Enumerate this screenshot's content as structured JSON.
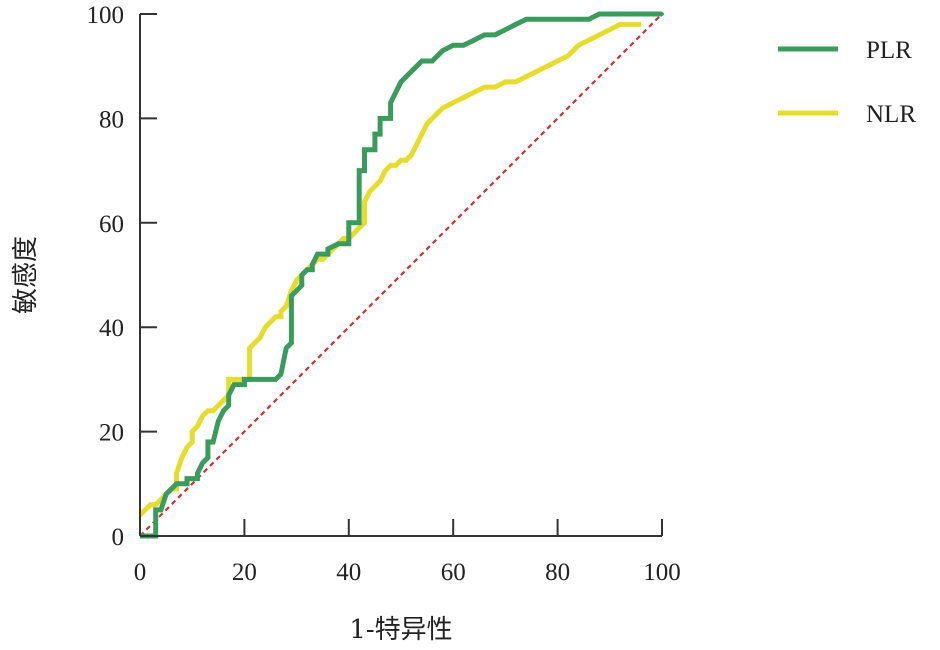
{
  "chart_data": {
    "type": "line",
    "title": "",
    "xlabel": "1-特异性",
    "ylabel": "敏感度",
    "xlim": [
      0,
      100
    ],
    "ylim": [
      0,
      100
    ],
    "xticks": [
      0,
      20,
      40,
      60,
      80,
      100
    ],
    "yticks": [
      0,
      20,
      40,
      60,
      80,
      100
    ],
    "grid": false,
    "legend_position": "top-right",
    "reference_line": {
      "x": [
        0,
        100
      ],
      "y": [
        0,
        100
      ],
      "style": "dashed",
      "color": "#cc3333"
    },
    "series": [
      {
        "name": "PLR",
        "color": "#3a9b5c",
        "x": [
          0,
          3,
          3,
          4,
          5,
          5,
          7,
          7,
          9,
          9,
          11,
          11,
          12,
          13,
          13,
          14,
          15,
          16,
          17,
          17,
          18,
          20,
          20,
          22,
          26,
          27,
          28,
          29,
          29,
          30,
          31,
          31,
          32,
          33,
          33,
          34,
          36,
          36,
          38,
          40,
          40,
          42,
          42,
          43,
          43,
          45,
          45,
          46,
          46,
          48,
          48,
          49,
          50,
          51,
          52,
          53,
          54,
          56,
          57,
          58,
          60,
          62,
          64,
          66,
          68,
          70,
          72,
          74,
          80,
          86,
          88,
          90,
          100
        ],
        "y": [
          0,
          0,
          5,
          5,
          8,
          8,
          10,
          10,
          10,
          11,
          11,
          12,
          14,
          15,
          18,
          18,
          22,
          24,
          25,
          27,
          29,
          29,
          30,
          30,
          30,
          31,
          36,
          37,
          46,
          47,
          48,
          50,
          51,
          51,
          52,
          54,
          54,
          55,
          56,
          56,
          60,
          60,
          70,
          70,
          74,
          74,
          77,
          77,
          80,
          80,
          83,
          85,
          87,
          88,
          89,
          90,
          91,
          91,
          92,
          93,
          94,
          94,
          95,
          96,
          96,
          97,
          98,
          99,
          99,
          99,
          100,
          100,
          100
        ]
      },
      {
        "name": "NLR",
        "color": "#e6dc2e",
        "x": [
          0,
          1,
          2,
          3,
          4,
          5,
          6,
          7,
          7,
          8,
          9,
          10,
          10,
          11,
          12,
          13,
          14,
          15,
          16,
          17,
          17,
          18,
          20,
          21,
          21,
          22,
          23,
          24,
          25,
          26,
          27,
          27,
          28,
          29,
          30,
          31,
          32,
          33,
          34,
          35,
          36,
          37,
          38,
          39,
          40,
          41,
          42,
          43,
          43,
          44,
          45,
          46,
          47,
          48,
          49,
          50,
          51,
          52,
          53,
          54,
          55,
          56,
          57,
          58,
          60,
          62,
          64,
          66,
          68,
          70,
          72,
          74,
          76,
          78,
          80,
          82,
          84,
          86,
          88,
          90,
          92,
          94,
          96
        ],
        "y": [
          4,
          5,
          6,
          6,
          7,
          8,
          9,
          9,
          12,
          15,
          17,
          18,
          20,
          21,
          23,
          24,
          24,
          25,
          26,
          27,
          30,
          30,
          30,
          30,
          36,
          37,
          38,
          40,
          41,
          42,
          42,
          43,
          44,
          47,
          49,
          50,
          51,
          52,
          53,
          53,
          54,
          55,
          56,
          57,
          57,
          58,
          59,
          60,
          64,
          66,
          67,
          68,
          70,
          71,
          71,
          72,
          72,
          73,
          75,
          77,
          79,
          80,
          81,
          82,
          83,
          84,
          85,
          86,
          86,
          87,
          87,
          88,
          89,
          90,
          91,
          92,
          94,
          95,
          96,
          97,
          98,
          98,
          98
        ]
      }
    ]
  }
}
